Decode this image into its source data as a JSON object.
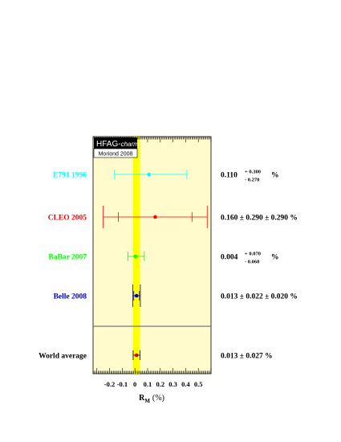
{
  "chart_data": {
    "type": "scatter",
    "orientation": "horizontal-error-bars",
    "badge": {
      "title_main": "HFAG-",
      "title_italic": "charm",
      "subtitle": "Moriond 2008"
    },
    "xlabel_main": "R",
    "xlabel_sub": "M",
    "xlabel_unit": "(%)",
    "xlim": [
      -0.33,
      0.6
    ],
    "xticks": [
      {
        "v": -0.2,
        "label": "-0.2"
      },
      {
        "v": -0.1,
        "label": "-0.1"
      },
      {
        "v": 0,
        "label": "0"
      },
      {
        "v": 0.1,
        "label": "0.1"
      },
      {
        "v": 0.2,
        "label": "0.2"
      },
      {
        "v": 0.3,
        "label": "0.3"
      },
      {
        "v": 0.4,
        "label": "0.4"
      },
      {
        "v": 0.5,
        "label": "0.5"
      }
    ],
    "band": {
      "center": 0.013,
      "halfwidth": 0.027,
      "color": "#ffff00"
    },
    "background": "#fffbcc",
    "measurements": [
      {
        "name": "E791 1996",
        "color": "#00ffff",
        "value": 0.11,
        "stat_minus": 0.27,
        "stat_plus": 0.3,
        "text_value": "0.110",
        "text_plus": "+ 0.300",
        "text_minus": "- 0.270",
        "text_unit": "%"
      },
      {
        "name": "CLEO 2005",
        "color": "#ff0000",
        "value": 0.16,
        "stat_minus": 0.29,
        "stat_plus": 0.29,
        "tot_minus": 0.41,
        "tot_plus": 0.41,
        "text": "0.160 ± 0.290 ± 0.290 %"
      },
      {
        "name": "BaBar 2007",
        "color": "#00ff00",
        "value": 0.004,
        "stat_minus": 0.06,
        "stat_plus": 0.07,
        "text_value": "0.004",
        "text_plus": "+ 0.070",
        "text_minus": "- 0.060",
        "text_unit": "%"
      },
      {
        "name": "Belle 2008",
        "color": "#0000cc",
        "value": 0.013,
        "stat_minus": 0.022,
        "stat_plus": 0.022,
        "tot_minus": 0.03,
        "tot_plus": 0.03,
        "text": "0.013 ± 0.022 ± 0.020 %"
      }
    ],
    "average": {
      "name": "World average",
      "color": "#000000",
      "value": 0.013,
      "minus": 0.027,
      "plus": 0.027,
      "text": "0.013 ± 0.027 %"
    }
  }
}
